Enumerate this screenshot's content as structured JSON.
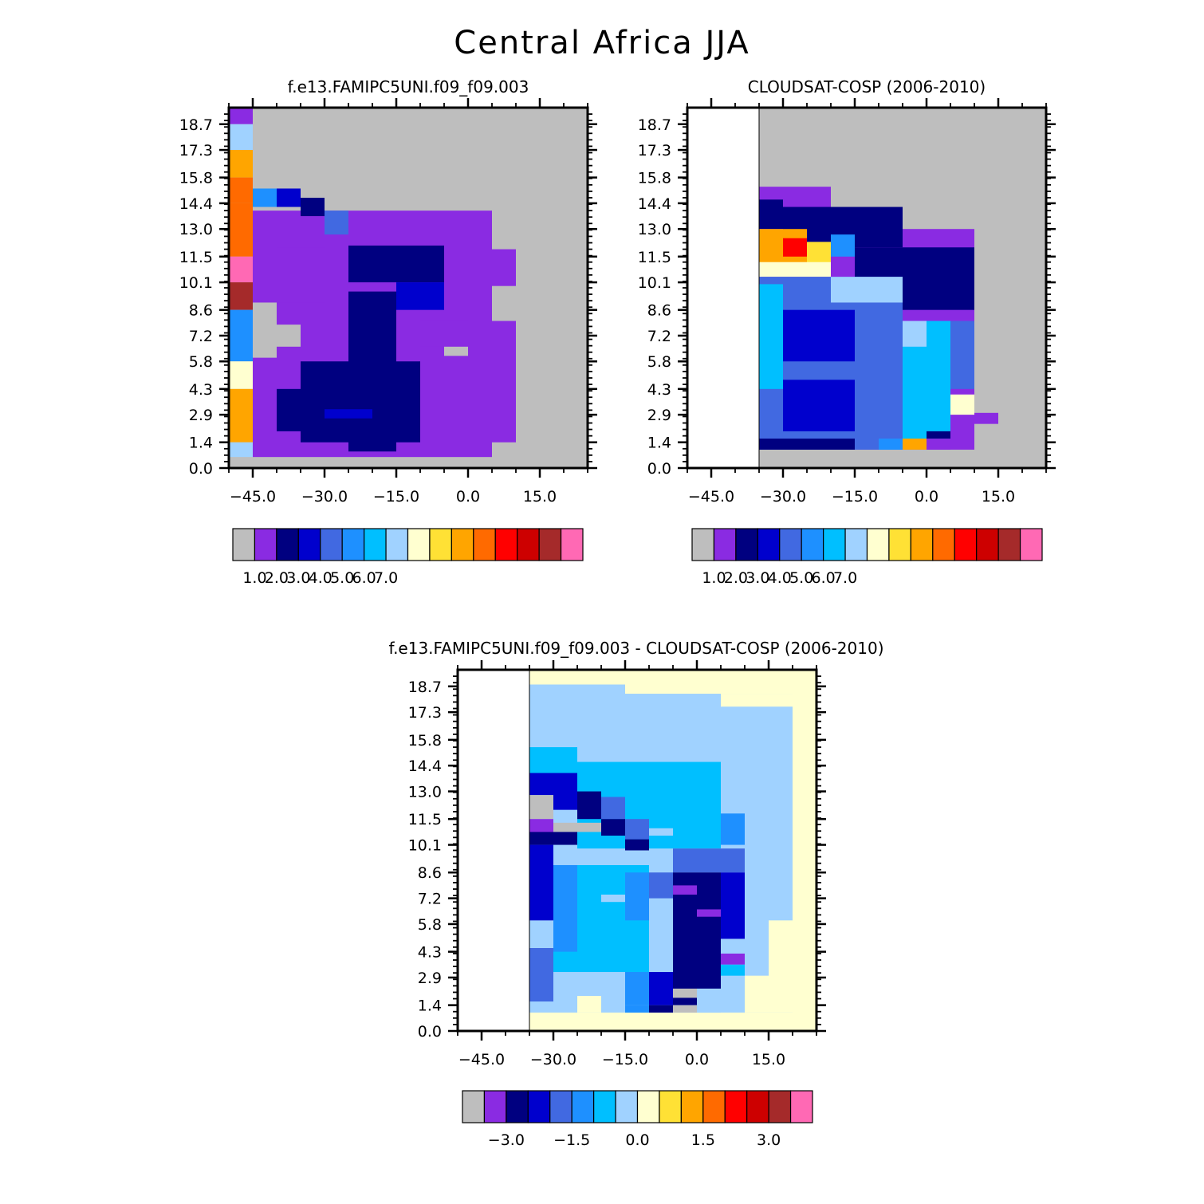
{
  "figure_title": "Central Africa JJA",
  "chart_data": [
    {
      "type": "heatmap",
      "title": "f.e13.FAMIPC5UNI.f09_f09.003",
      "yticks": [
        "0.0",
        "1.4",
        "2.9",
        "4.3",
        "5.8",
        "7.2",
        "8.6",
        "10.1",
        "11.5",
        "13.0",
        "14.4",
        "15.8",
        "17.3",
        "18.7"
      ],
      "xticks": [
        "-45.0",
        "-30.0",
        "-15.0",
        "0.0",
        "15.0"
      ],
      "xlim": [
        -50,
        25
      ],
      "ylim": [
        0,
        19.6
      ],
      "grid": false,
      "background_color": "#bebebe",
      "colorbar": {
        "colors": [
          "#bebebe",
          "#8a2be2",
          "#000080",
          "#0000cd",
          "#4169e1",
          "#1e90ff",
          "#00bfff",
          "#a0d2ff",
          "#ffffd0",
          "#ffe135",
          "#ffa500",
          "#ff6a00",
          "#ff0000",
          "#cd0000",
          "#a52a2a",
          "#ff69b4"
        ],
        "labels": [
          "1.0",
          "2.0",
          "3.0",
          "4.0",
          "5.0",
          "6.0",
          "7.0"
        ]
      },
      "cells": [
        {
          "x0": -50,
          "x1": -45,
          "y0": 18.7,
          "y1": 19.7,
          "c": 1
        },
        {
          "x0": -50,
          "x1": -45,
          "y0": 17.3,
          "y1": 18.7,
          "c": 7
        },
        {
          "x0": -50,
          "x1": -45,
          "y0": 15.8,
          "y1": 17.3,
          "c": 10
        },
        {
          "x0": -50,
          "x1": -45,
          "y0": 14.4,
          "y1": 15.8,
          "c": 11
        },
        {
          "x0": -50,
          "x1": -45,
          "y0": 11.5,
          "y1": 14.4,
          "c": 11
        },
        {
          "x0": -50,
          "x1": -45,
          "y0": 10.1,
          "y1": 11.5,
          "c": 15
        },
        {
          "x0": -50,
          "x1": -45,
          "y0": 8.6,
          "y1": 10.1,
          "c": 14
        },
        {
          "x0": -50,
          "x1": -45,
          "y0": 5.8,
          "y1": 8.6,
          "c": 5
        },
        {
          "x0": -50,
          "x1": -45,
          "y0": 4.3,
          "y1": 5.8,
          "c": 8
        },
        {
          "x0": -50,
          "x1": -45,
          "y0": 1.4,
          "y1": 4.3,
          "c": 10
        },
        {
          "x0": -50,
          "x1": -45,
          "y0": 0.6,
          "y1": 1.4,
          "c": 7
        },
        {
          "x0": -45,
          "x1": 5,
          "y0": 0.6,
          "y1": 14.0,
          "c": 1
        },
        {
          "x0": 5,
          "x1": 10,
          "y0": 1.4,
          "y1": 8.0,
          "c": 1
        },
        {
          "x0": 5,
          "x1": 10,
          "y0": 9.9,
          "y1": 11.9,
          "c": 1
        },
        {
          "x0": -45,
          "x1": -40,
          "y0": 14.2,
          "y1": 15.2,
          "c": 5
        },
        {
          "x0": -40,
          "x1": -35,
          "y0": 14.2,
          "y1": 15.2,
          "c": 3
        },
        {
          "x0": -35,
          "x1": -30,
          "y0": 13.7,
          "y1": 14.7,
          "c": 2
        },
        {
          "x0": -30,
          "x1": -25,
          "y0": 12.7,
          "y1": 14.0,
          "c": 4
        },
        {
          "x0": -40,
          "x1": -30,
          "y0": 9.0,
          "y1": 12.0,
          "c": 1
        },
        {
          "x0": -25,
          "x1": -5,
          "y0": 10.1,
          "y1": 12.1,
          "c": 2
        },
        {
          "x0": -15,
          "x1": -5,
          "y0": 8.6,
          "y1": 10.1,
          "c": 3
        },
        {
          "x0": -25,
          "x1": -15,
          "y0": 0.9,
          "y1": 9.6,
          "c": 2
        },
        {
          "x0": -35,
          "x1": -10,
          "y0": 1.4,
          "y1": 5.8,
          "c": 2
        },
        {
          "x0": -40,
          "x1": -35,
          "y0": 2.0,
          "y1": 4.3,
          "c": 2
        },
        {
          "x0": -30,
          "x1": -20,
          "y0": 2.7,
          "y1": 3.2,
          "c": 3
        },
        {
          "x0": -45,
          "x1": -40,
          "y0": 6.0,
          "y1": 9.0,
          "c": 0
        },
        {
          "x0": -40,
          "x1": -35,
          "y0": 6.6,
          "y1": 7.8,
          "c": 0
        },
        {
          "x0": -10,
          "x1": 0,
          "y0": 6.6,
          "y1": 8.0,
          "c": 1
        },
        {
          "x0": -5,
          "x1": 0,
          "y0": 6.1,
          "y1": 6.6,
          "c": 0
        }
      ]
    },
    {
      "type": "heatmap",
      "title": "CLOUDSAT-COSP (2006-2010)",
      "yticks": [
        "0.0",
        "1.4",
        "2.9",
        "4.3",
        "5.8",
        "7.2",
        "8.6",
        "10.1",
        "11.5",
        "13.0",
        "14.4",
        "15.8",
        "17.3",
        "18.7"
      ],
      "xticks": [
        "-45.0",
        "-30.0",
        "-15.0",
        "0.0",
        "15.0"
      ],
      "xlim": [
        -50,
        25
      ],
      "ylim": [
        0,
        19.6
      ],
      "grid": false,
      "background_color": "#bebebe",
      "colorbar": {
        "colors": [
          "#bebebe",
          "#8a2be2",
          "#000080",
          "#0000cd",
          "#4169e1",
          "#1e90ff",
          "#00bfff",
          "#a0d2ff",
          "#ffffd0",
          "#ffe135",
          "#ffa500",
          "#ff6a00",
          "#ff0000",
          "#cd0000",
          "#a52a2a",
          "#ff69b4"
        ],
        "labels": [
          "1.0",
          "2.0",
          "3.0",
          "4.0",
          "5.0",
          "6.0",
          "7.0"
        ]
      },
      "cells": [
        {
          "x0": -35,
          "x1": 10,
          "y0": 1.0,
          "y1": 13.0,
          "c": 1
        },
        {
          "x0": -35,
          "x1": -20,
          "y0": 13.0,
          "y1": 15.3,
          "c": 1
        },
        {
          "x0": -35,
          "x1": -30,
          "y0": 13.0,
          "y1": 14.6,
          "c": 2
        },
        {
          "x0": -30,
          "x1": -5,
          "y0": 12.0,
          "y1": 14.2,
          "c": 2
        },
        {
          "x0": -35,
          "x1": -25,
          "y0": 10.7,
          "y1": 13.0,
          "c": 10
        },
        {
          "x0": -30,
          "x1": -25,
          "y0": 11.5,
          "y1": 12.5,
          "c": 12
        },
        {
          "x0": -25,
          "x1": -20,
          "y0": 11.0,
          "y1": 12.3,
          "c": 9
        },
        {
          "x0": -35,
          "x1": -20,
          "y0": 10.4,
          "y1": 11.2,
          "c": 8
        },
        {
          "x0": -20,
          "x1": -15,
          "y0": 11.5,
          "y1": 12.7,
          "c": 5
        },
        {
          "x0": -15,
          "x1": 10,
          "y0": 8.6,
          "y1": 12.0,
          "c": 2
        },
        {
          "x0": -35,
          "x1": -5,
          "y0": 1.0,
          "y1": 10.4,
          "c": 4
        },
        {
          "x0": -20,
          "x1": -5,
          "y0": 9.0,
          "y1": 10.4,
          "c": 7
        },
        {
          "x0": -35,
          "x1": -30,
          "y0": 4.3,
          "y1": 10.0,
          "c": 6
        },
        {
          "x0": -30,
          "x1": -15,
          "y0": 5.8,
          "y1": 8.6,
          "c": 3
        },
        {
          "x0": -30,
          "x1": -15,
          "y0": 2.0,
          "y1": 4.8,
          "c": 3
        },
        {
          "x0": -5,
          "x1": 5,
          "y0": 1.4,
          "y1": 8.0,
          "c": 6
        },
        {
          "x0": -5,
          "x1": 0,
          "y0": 6.6,
          "y1": 8.0,
          "c": 7
        },
        {
          "x0": 5,
          "x1": 10,
          "y0": 4.3,
          "y1": 8.0,
          "c": 4
        },
        {
          "x0": 5,
          "x1": 10,
          "y0": 2.9,
          "y1": 4.0,
          "c": 8
        },
        {
          "x0": 10,
          "x1": 15,
          "y0": 2.4,
          "y1": 3.0,
          "c": 1
        },
        {
          "x0": -35,
          "x1": -15,
          "y0": 1.0,
          "y1": 1.6,
          "c": 2
        },
        {
          "x0": -10,
          "x1": -5,
          "y0": 1.0,
          "y1": 1.6,
          "c": 5
        },
        {
          "x0": -5,
          "x1": 0,
          "y0": 1.0,
          "y1": 1.6,
          "c": 10
        },
        {
          "x0": 0,
          "x1": 5,
          "y0": 1.0,
          "y1": 1.6,
          "c": 1
        },
        {
          "x0": 0,
          "x1": 5,
          "y0": 1.6,
          "y1": 2.0,
          "c": 2
        }
      ]
    },
    {
      "type": "heatmap",
      "title": "f.e13.FAMIPC5UNI.f09_f09.003 - CLOUDSAT-COSP (2006-2010)",
      "yticks": [
        "0.0",
        "1.4",
        "2.9",
        "4.3",
        "5.8",
        "7.2",
        "8.6",
        "10.1",
        "11.5",
        "13.0",
        "14.4",
        "15.8",
        "17.3",
        "18.7"
      ],
      "xticks": [
        "-45.0",
        "-30.0",
        "-15.0",
        "0.0",
        "15.0"
      ],
      "xlim": [
        -50,
        25
      ],
      "ylim": [
        0,
        19.6
      ],
      "grid": false,
      "background_color": "#ffffd0",
      "colorbar": {
        "colors": [
          "#bebebe",
          "#8a2be2",
          "#000080",
          "#0000cd",
          "#4169e1",
          "#1e90ff",
          "#00bfff",
          "#a0d2ff",
          "#ffffd0",
          "#ffe135",
          "#ffa500",
          "#ff6a00",
          "#ff0000",
          "#cd0000",
          "#a52a2a",
          "#ff69b4"
        ],
        "labels": [
          "-3.0",
          "-1.5",
          "0.0",
          "1.5",
          "3.0"
        ]
      },
      "cells": [
        {
          "x0": -35,
          "x1": 20,
          "y0": 1.0,
          "y1": 18.8,
          "c": 7
        },
        {
          "x0": -15,
          "x1": 25,
          "y0": 18.3,
          "y1": 19.6,
          "c": 8
        },
        {
          "x0": 5,
          "x1": 25,
          "y0": 17.6,
          "y1": 18.3,
          "c": 8
        },
        {
          "x0": 20,
          "x1": 25,
          "y0": 1.0,
          "y1": 17.6,
          "c": 8
        },
        {
          "x0": 15,
          "x1": 20,
          "y0": 1.0,
          "y1": 6.0,
          "c": 8
        },
        {
          "x0": 10,
          "x1": 15,
          "y0": 1.0,
          "y1": 3.0,
          "c": 8
        },
        {
          "x0": -35,
          "x1": -25,
          "y0": 13.0,
          "y1": 15.4,
          "c": 6
        },
        {
          "x0": -25,
          "x1": 5,
          "y0": 9.9,
          "y1": 14.6,
          "c": 6
        },
        {
          "x0": 5,
          "x1": 10,
          "y0": 10.1,
          "y1": 11.8,
          "c": 5
        },
        {
          "x0": -35,
          "x1": -30,
          "y0": 12.8,
          "y1": 14.0,
          "c": 3
        },
        {
          "x0": -30,
          "x1": -25,
          "y0": 12.0,
          "y1": 14.0,
          "c": 3
        },
        {
          "x0": -25,
          "x1": -20,
          "y0": 11.5,
          "y1": 13.0,
          "c": 2
        },
        {
          "x0": -20,
          "x1": -15,
          "y0": 11.5,
          "y1": 12.7,
          "c": 4
        },
        {
          "x0": -20,
          "x1": -15,
          "y0": 10.6,
          "y1": 11.5,
          "c": 2
        },
        {
          "x0": -15,
          "x1": -10,
          "y0": 10.4,
          "y1": 11.5,
          "c": 4
        },
        {
          "x0": -15,
          "x1": -10,
          "y0": 9.8,
          "y1": 10.4,
          "c": 2
        },
        {
          "x0": -35,
          "x1": -30,
          "y0": 11.5,
          "y1": 12.8,
          "c": 0
        },
        {
          "x0": -35,
          "x1": -30,
          "y0": 10.6,
          "y1": 11.5,
          "c": 1
        },
        {
          "x0": -30,
          "x1": -20,
          "y0": 10.8,
          "y1": 11.3,
          "c": 0
        },
        {
          "x0": -35,
          "x1": -25,
          "y0": 10.1,
          "y1": 10.8,
          "c": 2
        },
        {
          "x0": -35,
          "x1": -30,
          "y0": 6.0,
          "y1": 10.1,
          "c": 3
        },
        {
          "x0": -30,
          "x1": -10,
          "y0": 2.9,
          "y1": 9.0,
          "c": 6
        },
        {
          "x0": -30,
          "x1": -25,
          "y0": 4.3,
          "y1": 9.0,
          "c": 5
        },
        {
          "x0": -15,
          "x1": -10,
          "y0": 6.0,
          "y1": 8.6,
          "c": 5
        },
        {
          "x0": -10,
          "x1": -5,
          "y0": 7.2,
          "y1": 8.6,
          "c": 4
        },
        {
          "x0": -5,
          "x1": 10,
          "y0": 8.6,
          "y1": 9.9,
          "c": 4
        },
        {
          "x0": -5,
          "x1": 5,
          "y0": 1.4,
          "y1": 8.6,
          "c": 2
        },
        {
          "x0": 5,
          "x1": 10,
          "y0": 5.0,
          "y1": 8.6,
          "c": 3
        },
        {
          "x0": 0,
          "x1": 5,
          "y0": 6.2,
          "y1": 6.6,
          "c": 1
        },
        {
          "x0": -5,
          "x1": 0,
          "y0": 7.4,
          "y1": 7.9,
          "c": 1
        },
        {
          "x0": 5,
          "x1": 10,
          "y0": 3.6,
          "y1": 4.2,
          "c": 1
        },
        {
          "x0": 5,
          "x1": 10,
          "y0": 3.0,
          "y1": 3.6,
          "c": 6
        },
        {
          "x0": -35,
          "x1": -30,
          "y0": 1.6,
          "y1": 4.5,
          "c": 4
        },
        {
          "x0": -30,
          "x1": -15,
          "y0": 1.4,
          "y1": 3.2,
          "c": 7
        },
        {
          "x0": -15,
          "x1": -10,
          "y0": 1.4,
          "y1": 3.2,
          "c": 5
        },
        {
          "x0": -10,
          "x1": -5,
          "y0": 1.4,
          "y1": 3.2,
          "c": 3
        },
        {
          "x0": -5,
          "x1": 0,
          "y0": 1.8,
          "y1": 2.3,
          "c": 0
        },
        {
          "x0": 0,
          "x1": 5,
          "y0": 1.0,
          "y1": 2.3,
          "c": 7
        },
        {
          "x0": -25,
          "x1": -20,
          "y0": 1.0,
          "y1": 1.9,
          "c": 8
        },
        {
          "x0": -15,
          "x1": -10,
          "y0": 1.0,
          "y1": 1.4,
          "c": 5
        },
        {
          "x0": -10,
          "x1": -5,
          "y0": 1.0,
          "y1": 1.4,
          "c": 2
        },
        {
          "x0": -5,
          "x1": 0,
          "y0": 1.0,
          "y1": 1.4,
          "c": 0
        },
        {
          "x0": -20,
          "x1": -15,
          "y0": 7.0,
          "y1": 7.4,
          "c": 7
        },
        {
          "x0": -10,
          "x1": -5,
          "y0": 10.6,
          "y1": 11.0,
          "c": 7
        }
      ]
    }
  ]
}
